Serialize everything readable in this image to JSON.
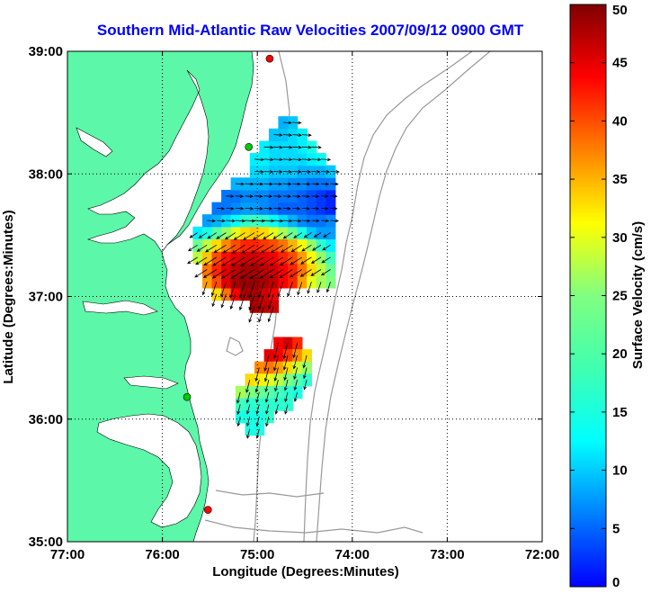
{
  "title": "Southern Mid-Atlantic Raw Velocities 2007/09/12 0900 GMT",
  "chart_data": {
    "type": "map",
    "xlabel": "Longitude (Degrees:Minutes)",
    "ylabel": "Latitude (Degrees:Minutes)",
    "xlim": [
      -77,
      -72
    ],
    "ylim": [
      35,
      39
    ],
    "x_ticks": [
      {
        "value": -77,
        "label": "77:00"
      },
      {
        "value": -76,
        "label": "76:00"
      },
      {
        "value": -75,
        "label": "75:00"
      },
      {
        "value": -74,
        "label": "74:00"
      },
      {
        "value": -73,
        "label": "73:00"
      },
      {
        "value": -72,
        "label": "72:00"
      }
    ],
    "y_ticks": [
      {
        "value": 35,
        "label": "35:00"
      },
      {
        "value": 36,
        "label": "36:00"
      },
      {
        "value": 37,
        "label": "37:00"
      },
      {
        "value": 38,
        "label": "38:00"
      },
      {
        "value": 39,
        "label": "39:00"
      }
    ],
    "grid": true,
    "colorbar": {
      "label": "Surface Velocity (cm/s)",
      "range": [
        0,
        50
      ],
      "ticks": [
        {
          "value": 0,
          "label": "0"
        },
        {
          "value": 5,
          "label": "5"
        },
        {
          "value": 10,
          "label": "10"
        },
        {
          "value": 15,
          "label": "15"
        },
        {
          "value": 20,
          "label": "20"
        },
        {
          "value": 25,
          "label": "25"
        },
        {
          "value": 30,
          "label": "30"
        },
        {
          "value": 35,
          "label": "35"
        },
        {
          "value": 40,
          "label": "40"
        },
        {
          "value": 45,
          "label": "45"
        },
        {
          "value": 50,
          "label": "50"
        }
      ],
      "colormap": "jet"
    },
    "stations": [
      {
        "lon": -74.87,
        "lat": 38.94,
        "color": "#ff0000"
      },
      {
        "lon": -75.09,
        "lat": 38.22,
        "color": "#00cc00"
      },
      {
        "lon": -75.74,
        "lat": 36.18,
        "color": "#00cc00"
      },
      {
        "lon": -75.52,
        "lat": 35.26,
        "color": "#ff0000"
      }
    ],
    "regions": [
      {
        "name": "northern",
        "cells": [
          [
            -75.43,
            37.02,
            33
          ],
          [
            -75.33,
            37.02,
            38
          ],
          [
            -75.23,
            37.02,
            44
          ],
          [
            -75.13,
            37.02,
            48
          ],
          [
            -75.03,
            37.02,
            48
          ],
          [
            -74.93,
            37.02,
            46
          ],
          [
            -74.83,
            37.02,
            44
          ],
          [
            -75.53,
            37.12,
            36
          ],
          [
            -75.43,
            37.12,
            40
          ],
          [
            -75.33,
            37.12,
            45
          ],
          [
            -75.23,
            37.12,
            48
          ],
          [
            -75.13,
            37.12,
            49
          ],
          [
            -75.03,
            37.12,
            49
          ],
          [
            -74.93,
            37.12,
            48
          ],
          [
            -74.83,
            37.12,
            47
          ],
          [
            -74.73,
            37.12,
            44
          ],
          [
            -74.63,
            37.12,
            42
          ],
          [
            -74.53,
            37.12,
            36
          ],
          [
            -74.43,
            37.12,
            30
          ],
          [
            -74.33,
            37.12,
            27
          ],
          [
            -74.23,
            37.12,
            25
          ],
          [
            -75.53,
            37.22,
            38
          ],
          [
            -75.43,
            37.22,
            42
          ],
          [
            -75.33,
            37.22,
            45
          ],
          [
            -75.23,
            37.22,
            47
          ],
          [
            -75.13,
            37.22,
            48
          ],
          [
            -75.03,
            37.22,
            48
          ],
          [
            -74.93,
            37.22,
            47
          ],
          [
            -74.83,
            37.22,
            46
          ],
          [
            -74.73,
            37.22,
            44
          ],
          [
            -74.63,
            37.22,
            42
          ],
          [
            -74.53,
            37.22,
            38
          ],
          [
            -74.43,
            37.22,
            33
          ],
          [
            -74.33,
            37.22,
            28
          ],
          [
            -74.23,
            37.22,
            24
          ],
          [
            -75.63,
            37.32,
            28
          ],
          [
            -75.53,
            37.32,
            34
          ],
          [
            -75.43,
            37.32,
            40
          ],
          [
            -75.33,
            37.32,
            43
          ],
          [
            -75.23,
            37.32,
            45
          ],
          [
            -75.13,
            37.32,
            46
          ],
          [
            -75.03,
            37.32,
            46
          ],
          [
            -74.93,
            37.32,
            45
          ],
          [
            -74.83,
            37.32,
            44
          ],
          [
            -74.73,
            37.32,
            42
          ],
          [
            -74.63,
            37.32,
            40
          ],
          [
            -74.53,
            37.32,
            36
          ],
          [
            -74.43,
            37.32,
            31
          ],
          [
            -74.33,
            37.32,
            26
          ],
          [
            -74.23,
            37.32,
            22
          ],
          [
            -75.63,
            37.42,
            24
          ],
          [
            -75.53,
            37.42,
            28
          ],
          [
            -75.43,
            37.42,
            33
          ],
          [
            -75.33,
            37.42,
            37
          ],
          [
            -75.23,
            37.42,
            40
          ],
          [
            -75.13,
            37.42,
            42
          ],
          [
            -75.03,
            37.42,
            42
          ],
          [
            -74.93,
            37.42,
            41
          ],
          [
            -74.83,
            37.42,
            40
          ],
          [
            -74.73,
            37.42,
            38
          ],
          [
            -74.63,
            37.42,
            35
          ],
          [
            -74.53,
            37.42,
            31
          ],
          [
            -74.43,
            37.42,
            26
          ],
          [
            -74.33,
            37.42,
            21
          ],
          [
            -74.23,
            37.42,
            18
          ],
          [
            -75.63,
            37.52,
            18
          ],
          [
            -75.53,
            37.52,
            20
          ],
          [
            -75.43,
            37.52,
            23
          ],
          [
            -75.33,
            37.52,
            26
          ],
          [
            -75.23,
            37.52,
            30
          ],
          [
            -75.13,
            37.52,
            33
          ],
          [
            -75.03,
            37.52,
            34
          ],
          [
            -74.93,
            37.52,
            33
          ],
          [
            -74.83,
            37.52,
            30
          ],
          [
            -74.73,
            37.52,
            27
          ],
          [
            -74.63,
            37.52,
            24
          ],
          [
            -74.53,
            37.52,
            20
          ],
          [
            -74.43,
            37.52,
            16
          ],
          [
            -74.33,
            37.52,
            14
          ],
          [
            -74.23,
            37.52,
            14
          ],
          [
            -75.53,
            37.62,
            14
          ],
          [
            -75.43,
            37.62,
            15
          ],
          [
            -75.33,
            37.62,
            17
          ],
          [
            -75.23,
            37.62,
            19
          ],
          [
            -75.13,
            37.62,
            21
          ],
          [
            -75.03,
            37.62,
            22
          ],
          [
            -74.93,
            37.62,
            21
          ],
          [
            -74.83,
            37.62,
            19
          ],
          [
            -74.73,
            37.62,
            17
          ],
          [
            -74.63,
            37.62,
            15
          ],
          [
            -74.53,
            37.62,
            13
          ],
          [
            -74.43,
            37.62,
            12
          ],
          [
            -74.33,
            37.62,
            12
          ],
          [
            -74.23,
            37.62,
            13
          ],
          [
            -75.43,
            37.72,
            12
          ],
          [
            -75.33,
            37.72,
            12
          ],
          [
            -75.23,
            37.72,
            13
          ],
          [
            -75.13,
            37.72,
            14
          ],
          [
            -75.03,
            37.72,
            14
          ],
          [
            -74.93,
            37.72,
            13
          ],
          [
            -74.83,
            37.72,
            12
          ],
          [
            -74.73,
            37.72,
            11
          ],
          [
            -74.63,
            37.72,
            11
          ],
          [
            -74.53,
            37.72,
            11
          ],
          [
            -74.43,
            37.72,
            10
          ],
          [
            -74.33,
            37.72,
            9
          ],
          [
            -74.23,
            37.72,
            8
          ],
          [
            -75.33,
            37.82,
            12
          ],
          [
            -75.23,
            37.82,
            12
          ],
          [
            -75.13,
            37.82,
            13
          ],
          [
            -75.03,
            37.82,
            13
          ],
          [
            -74.93,
            37.82,
            13
          ],
          [
            -74.83,
            37.82,
            12
          ],
          [
            -74.73,
            37.82,
            12
          ],
          [
            -74.63,
            37.82,
            12
          ],
          [
            -74.53,
            37.82,
            11
          ],
          [
            -74.43,
            37.82,
            10
          ],
          [
            -74.33,
            37.82,
            9
          ],
          [
            -74.23,
            37.82,
            8
          ],
          [
            -75.23,
            37.92,
            15
          ],
          [
            -75.13,
            37.92,
            15
          ],
          [
            -75.03,
            37.92,
            15
          ],
          [
            -74.93,
            37.92,
            15
          ],
          [
            -74.83,
            37.92,
            14
          ],
          [
            -74.73,
            37.92,
            14
          ],
          [
            -74.63,
            37.92,
            13
          ],
          [
            -74.53,
            37.92,
            13
          ],
          [
            -74.43,
            37.92,
            12
          ],
          [
            -74.33,
            37.92,
            12
          ],
          [
            -74.23,
            37.92,
            12
          ],
          [
            -75.03,
            38.02,
            17
          ],
          [
            -74.93,
            38.02,
            17
          ],
          [
            -74.83,
            38.02,
            16
          ],
          [
            -74.73,
            38.02,
            16
          ],
          [
            -74.63,
            38.02,
            16
          ],
          [
            -74.53,
            38.02,
            15
          ],
          [
            -74.43,
            38.02,
            15
          ],
          [
            -74.33,
            38.02,
            15
          ],
          [
            -74.23,
            38.02,
            16
          ],
          [
            -75.03,
            38.12,
            18
          ],
          [
            -74.93,
            38.12,
            18
          ],
          [
            -74.83,
            38.12,
            17
          ],
          [
            -74.73,
            38.12,
            17
          ],
          [
            -74.63,
            38.12,
            17
          ],
          [
            -74.53,
            38.12,
            17
          ],
          [
            -74.43,
            38.12,
            18
          ],
          [
            -74.33,
            38.12,
            19
          ],
          [
            -74.93,
            38.22,
            18
          ],
          [
            -74.83,
            38.22,
            17
          ],
          [
            -74.73,
            38.22,
            17
          ],
          [
            -74.63,
            38.22,
            17
          ],
          [
            -74.53,
            38.22,
            18
          ],
          [
            -74.43,
            38.22,
            20
          ],
          [
            -74.83,
            38.32,
            16
          ],
          [
            -74.73,
            38.32,
            16
          ],
          [
            -74.63,
            38.32,
            17
          ],
          [
            -74.53,
            38.32,
            18
          ],
          [
            -74.73,
            38.42,
            15
          ],
          [
            -74.63,
            38.42,
            16
          ],
          [
            -75.03,
            36.92,
            48
          ],
          [
            -74.93,
            36.92,
            47
          ],
          [
            -74.83,
            36.92,
            46
          ]
        ]
      },
      {
        "name": "southern",
        "cells": [
          [
            -74.78,
            36.62,
            44
          ],
          [
            -74.68,
            36.62,
            46
          ],
          [
            -74.58,
            36.62,
            42
          ],
          [
            -74.88,
            36.52,
            45
          ],
          [
            -74.78,
            36.52,
            44
          ],
          [
            -74.68,
            36.52,
            41
          ],
          [
            -74.58,
            36.52,
            37
          ],
          [
            -74.48,
            36.52,
            33
          ],
          [
            -74.98,
            36.42,
            37
          ],
          [
            -74.88,
            36.42,
            38
          ],
          [
            -74.78,
            36.42,
            36
          ],
          [
            -74.68,
            36.42,
            33
          ],
          [
            -74.58,
            36.42,
            29
          ],
          [
            -74.48,
            36.42,
            26
          ],
          [
            -75.08,
            36.32,
            33
          ],
          [
            -74.98,
            36.32,
            32
          ],
          [
            -74.88,
            36.32,
            30
          ],
          [
            -74.78,
            36.32,
            28
          ],
          [
            -74.68,
            36.32,
            25
          ],
          [
            -74.58,
            36.32,
            23
          ],
          [
            -74.48,
            36.32,
            21
          ],
          [
            -75.18,
            36.22,
            27
          ],
          [
            -75.08,
            36.22,
            25
          ],
          [
            -74.98,
            36.22,
            24
          ],
          [
            -74.88,
            36.22,
            23
          ],
          [
            -74.78,
            36.22,
            22
          ],
          [
            -74.68,
            36.22,
            21
          ],
          [
            -74.58,
            36.22,
            20
          ],
          [
            -75.18,
            36.12,
            22
          ],
          [
            -75.08,
            36.12,
            21
          ],
          [
            -74.98,
            36.12,
            21
          ],
          [
            -74.88,
            36.12,
            21
          ],
          [
            -74.78,
            36.12,
            21
          ],
          [
            -74.68,
            36.12,
            21
          ],
          [
            -75.18,
            36.02,
            20
          ],
          [
            -75.08,
            36.02,
            20
          ],
          [
            -74.98,
            36.02,
            20
          ],
          [
            -74.88,
            36.02,
            21
          ],
          [
            -75.08,
            35.92,
            20
          ],
          [
            -74.98,
            35.92,
            20
          ]
        ]
      }
    ]
  }
}
